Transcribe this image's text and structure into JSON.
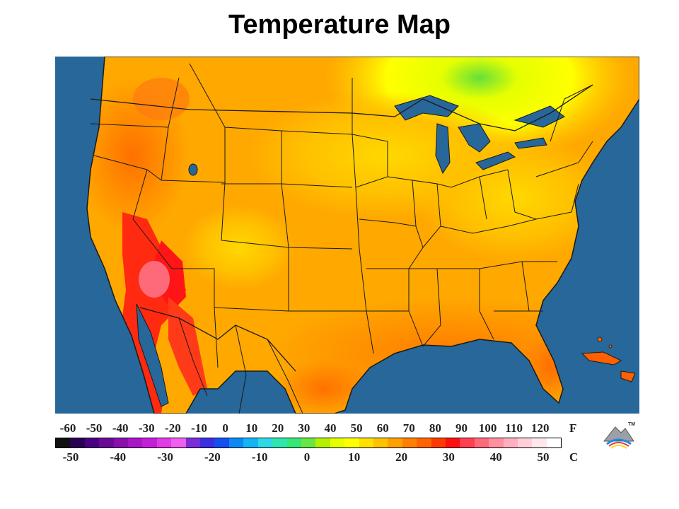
{
  "title": "Temperature Map",
  "legend": {
    "fahrenheit_unit": "F",
    "celsius_unit": "C",
    "fahrenheit_ticks": [
      "-60",
      "-50",
      "-40",
      "-30",
      "-20",
      "-10",
      "0",
      "10",
      "20",
      "30",
      "40",
      "50",
      "60",
      "70",
      "80",
      "90",
      "100",
      "110",
      "120"
    ],
    "celsius_ticks": [
      "-50",
      "-40",
      "-30",
      "-20",
      "-10",
      "0",
      "10",
      "20",
      "30",
      "40",
      "50"
    ],
    "colors": [
      "#111111",
      "#2a0055",
      "#4b0082",
      "#6a0a96",
      "#8a0fae",
      "#a816c5",
      "#c41fd8",
      "#e23be6",
      "#f060f0",
      "#7b2ed8",
      "#3b2ee0",
      "#1450f0",
      "#0a8af5",
      "#14b4f5",
      "#2fd8e6",
      "#2fe6b0",
      "#36e676",
      "#6ae642",
      "#b4f000",
      "#e6ff00",
      "#ffff00",
      "#ffe000",
      "#ffc200",
      "#ffa000",
      "#ff8000",
      "#ff6400",
      "#ff3a00",
      "#ff1010",
      "#ff4050",
      "#ff6a7a",
      "#ff90a0",
      "#ffb0c0",
      "#ffd0d8",
      "#ffe8ec",
      "#ffffff"
    ]
  },
  "logo": {
    "trademark": "TM"
  },
  "map": {
    "ocean_color": "#27679a",
    "land_base_color": "#ffa600",
    "border_color": "#1a1a1a"
  }
}
